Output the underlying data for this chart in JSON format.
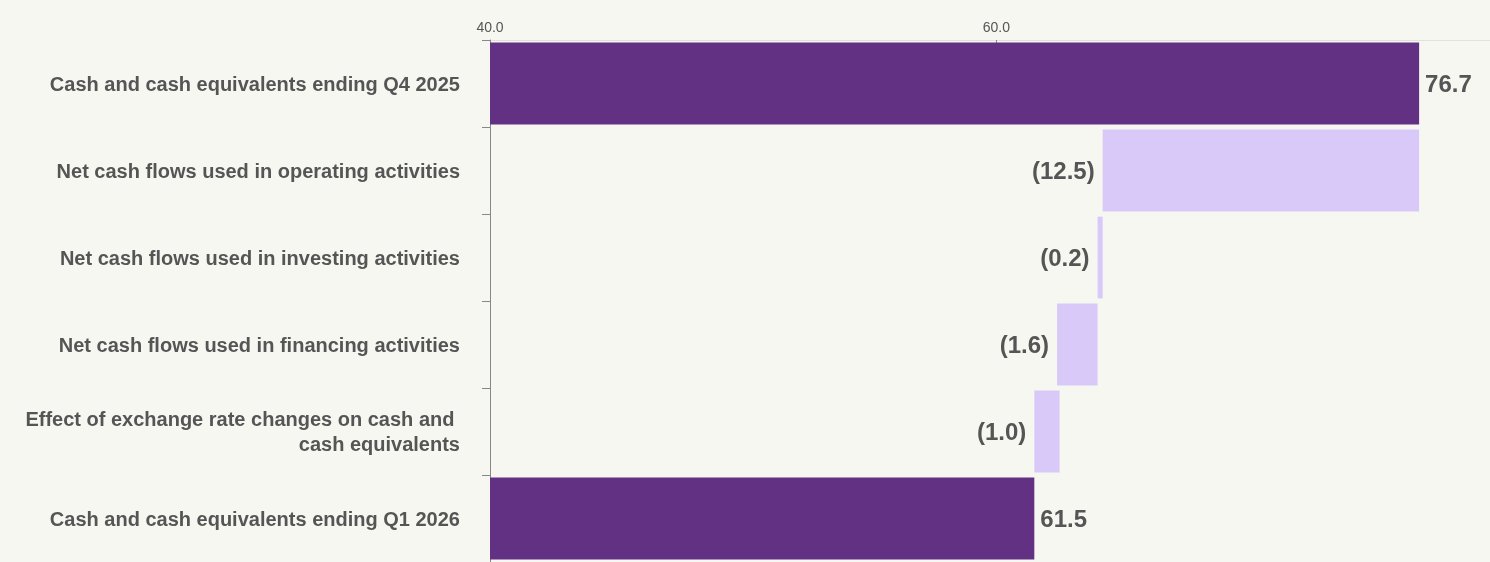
{
  "chart_data": {
    "type": "bar",
    "orientation": "horizontal",
    "categories": [
      "Cash and cash equivalents ending Q4 2025",
      "Net cash flows used in operating activities",
      "Net cash flows used in investing activities",
      "Net cash flows used in financing activities",
      "Effect of exchange rate changes on cash and cash equivalents",
      "Cash and cash equivalents ending Q1 2026"
    ],
    "values": [
      76.7,
      -12.5,
      -0.2,
      -1.6,
      -1.0,
      61.5
    ],
    "base": [
      0,
      76.7,
      64.2,
      64.0,
      62.5,
      0
    ],
    "colors": [
      "#633184",
      "#d8c9f9",
      "#d8c9f9",
      "#d8c9f9",
      "#d8c9f9",
      "#633184"
    ],
    "value_labels": [
      "76.7",
      "(12.5)",
      "(0.2)",
      "(1.6)",
      "(1.0)",
      "61.5"
    ],
    "xlim": [
      40,
      79.5
    ],
    "xticks": [
      {
        "value": 40,
        "label": "40.0"
      },
      {
        "value": 60,
        "label": "60.0"
      }
    ],
    "grid": false
  }
}
